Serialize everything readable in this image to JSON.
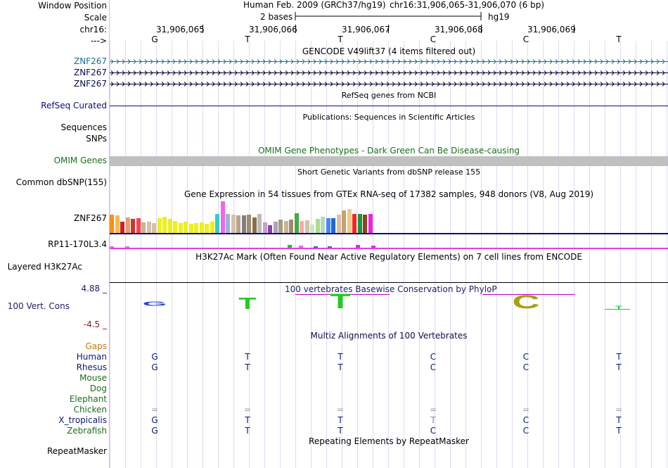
{
  "header": {
    "window_position_label": "Window Position",
    "scale_label": "Scale",
    "chrom_label": "chr16:",
    "strand_label": "--->",
    "assembly": "Human Feb. 2009 (GRCh37/hg19)",
    "position": "chr16:31,906,065-31,906,070 (6 bp)",
    "scale_text": "2 bases",
    "db": "hg19",
    "ticks": [
      "31,906,065",
      "31,906,066",
      "31,906,067",
      "31,906,068",
      "31,906,069"
    ]
  },
  "sequence": [
    "G",
    "T",
    "T",
    "C",
    "C",
    "T"
  ],
  "gencode": {
    "title": "GENCODE V49lift37 (4 items filtered out)",
    "items": [
      "ZNF267",
      "ZNF267",
      "ZNF267"
    ]
  },
  "refseq": {
    "title": "RefSeq genes from NCBI",
    "label": "RefSeq Curated"
  },
  "publications": {
    "title": "Publications: Sequences in Scientific Articles",
    "labels": [
      "Sequences",
      "SNPs"
    ]
  },
  "omim": {
    "title": "OMIM Gene Phenotypes - Dark Green Can Be Disease-causing",
    "label": "OMIM Genes"
  },
  "dbsnp": {
    "title": "Short Genetic Variants from dbSNP release 155",
    "label": "Common dbSNP(155)"
  },
  "gtex": {
    "title": "Gene Expression in 54 tissues from GTEx RNA-seq of 17382 samples, 948 donors (V8, Aug 2019)",
    "labels": [
      "ZNF267",
      "RP11-170L3.4"
    ]
  },
  "h3k27ac": {
    "title": "H3K27Ac Mark (Often Found Near Active Regulatory Elements) on 7 cell lines from ENCODE",
    "label": "Layered H3K27Ac"
  },
  "conservation": {
    "title": "100 vertebrates Basewise Conservation by PhyloP",
    "label": "100 Vert. Cons",
    "max": "4.88 _",
    "min": "-4.5 _"
  },
  "multiz": {
    "title": "Multiz Alignments of 100 Vertebrates",
    "species": [
      {
        "name": "Gaps",
        "color": "#cc7700",
        "bases": [
          "",
          "",
          "",
          "",
          "",
          ""
        ]
      },
      {
        "name": "Human",
        "color": "#0a1a6e",
        "bases": [
          "G",
          "T",
          "T",
          "C",
          "C",
          "T"
        ]
      },
      {
        "name": "Rhesus",
        "color": "#0a1a6e",
        "bases": [
          "G",
          "T",
          "T",
          "C",
          "C",
          "T"
        ]
      },
      {
        "name": "Mouse",
        "color": "#1a6e1a",
        "bases": [
          "",
          "",
          "",
          "",
          "",
          ""
        ]
      },
      {
        "name": "Dog",
        "color": "#1a6e1a",
        "bases": [
          "",
          "",
          "",
          "",
          "",
          ""
        ]
      },
      {
        "name": "Elephant",
        "color": "#1a6e1a",
        "bases": [
          "",
          "",
          "",
          "",
          "",
          ""
        ]
      },
      {
        "name": "Chicken",
        "color": "#1a6e1a",
        "bases": [
          "=",
          "=",
          "=",
          "=",
          "=",
          "="
        ]
      },
      {
        "name": "X_tropicalis",
        "color": "#0a1a6e",
        "bases": [
          "G",
          "T",
          "T",
          "T",
          "C",
          "T"
        ]
      },
      {
        "name": "Zebrafish",
        "color": "#1a6e1a",
        "bases": [
          "G",
          "T",
          "T",
          "C",
          "C",
          "T"
        ]
      }
    ]
  },
  "repeatmasker": {
    "title": "Repeating Elements by RepeatMasker",
    "label": "RepeatMasker"
  },
  "colors": {
    "gencode": "#1a6e8e",
    "refseq": "#0c0c78",
    "omim": "#1a6e1a",
    "omim_bar": "#c0c0c0",
    "cons_pos": "#20206a",
    "cons_neg": "#8a1a1a",
    "gaps": "#cc7700"
  }
}
